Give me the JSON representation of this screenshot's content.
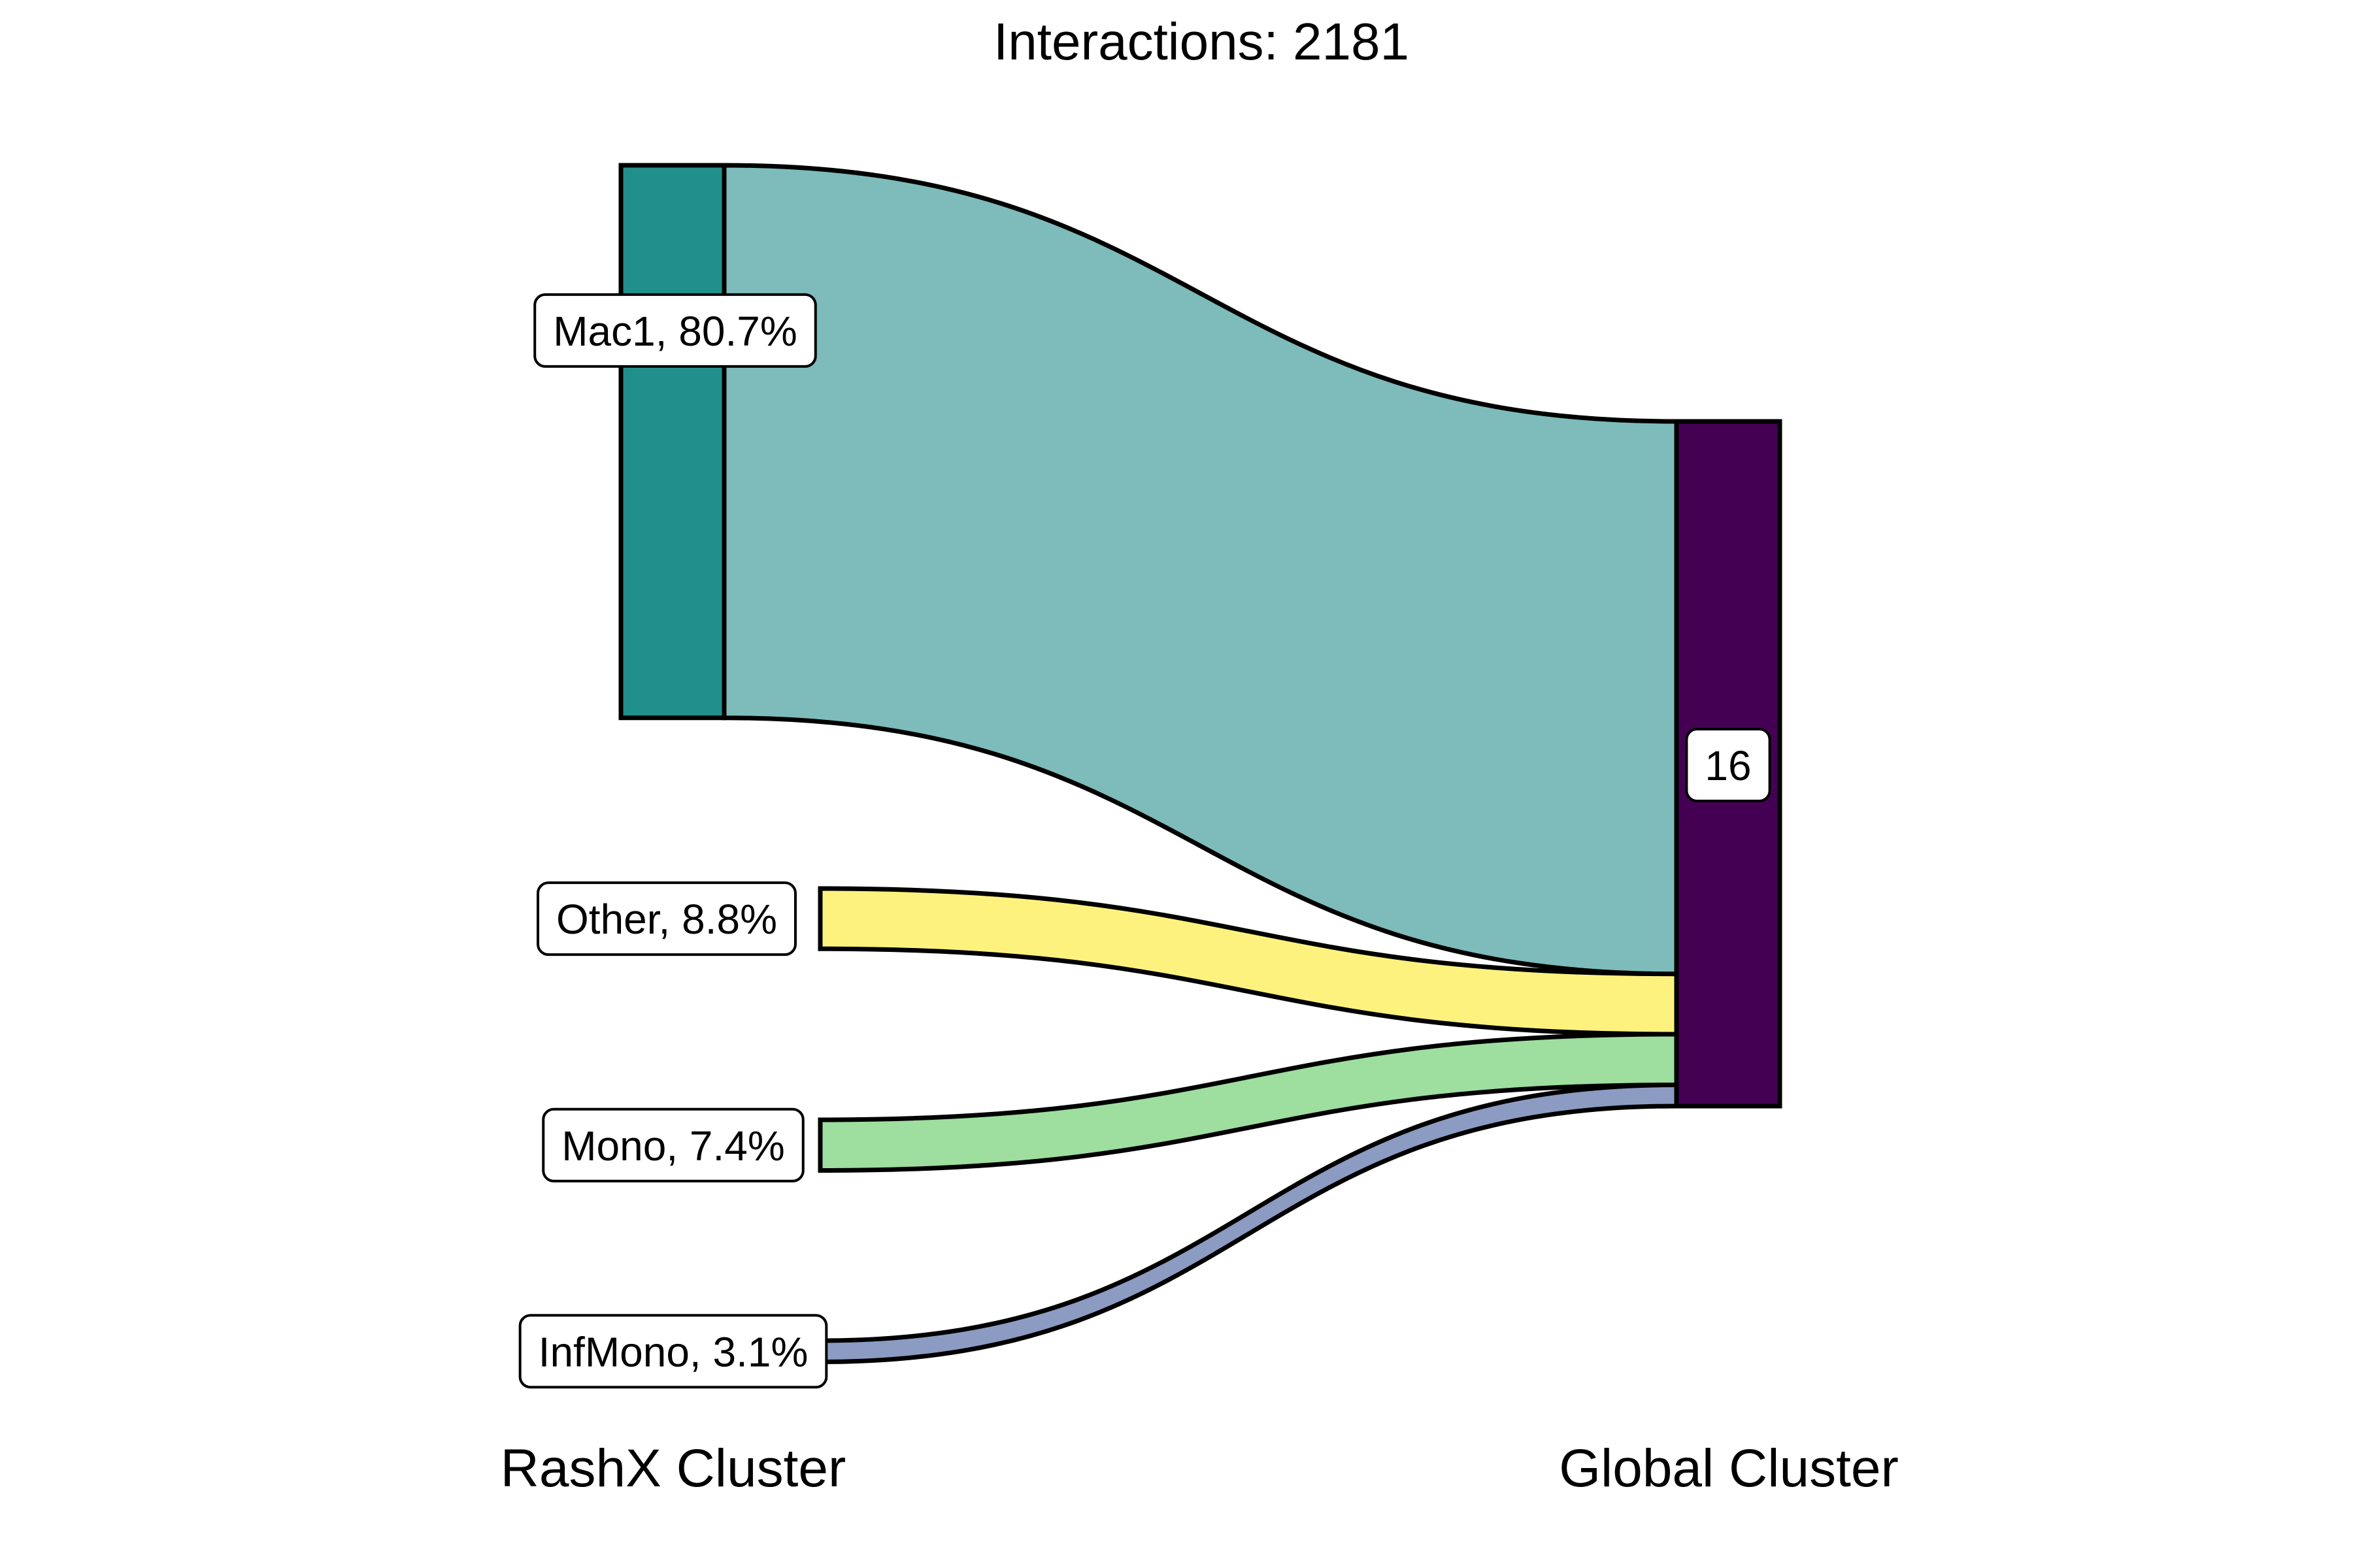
{
  "chart_data": {
    "type": "sankey",
    "title": "Interactions: 2181",
    "axis_labels": {
      "left": "RashX Cluster",
      "right": "Global Cluster"
    },
    "source_nodes": [
      {
        "id": "Mac1",
        "label": "Mac1, 80.7%",
        "percent": 80.7,
        "color": "#21908C",
        "flow_color": "#7DBCBA"
      },
      {
        "id": "Other",
        "label": "Other, 8.8%",
        "percent": 8.8,
        "color": "#FDF27E",
        "flow_color": "#FDF27E"
      },
      {
        "id": "Mono",
        "label": "Mono, 7.4%",
        "percent": 7.4,
        "color": "#9EDE9E",
        "flow_color": "#9EDE9E"
      },
      {
        "id": "InfMono",
        "label": "InfMono, 3.1%",
        "percent": 3.1,
        "color": "#8C9BC2",
        "flow_color": "#8C9BC2"
      }
    ],
    "target_nodes": [
      {
        "id": "16",
        "label": "16",
        "color": "#440154"
      }
    ],
    "flows": [
      {
        "source": "Mac1",
        "target": "16",
        "percent": 80.7
      },
      {
        "source": "Other",
        "target": "16",
        "percent": 8.8
      },
      {
        "source": "Mono",
        "target": "16",
        "percent": 7.4
      },
      {
        "source": "InfMono",
        "target": "16",
        "percent": 3.1
      }
    ]
  }
}
